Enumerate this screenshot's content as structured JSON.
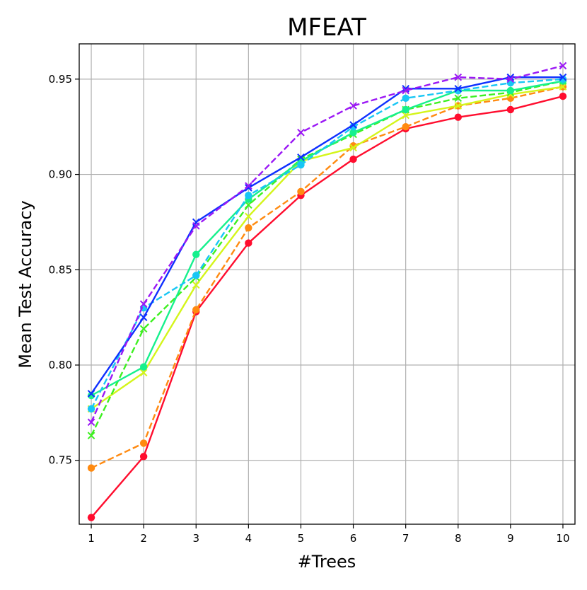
{
  "chart_data": {
    "type": "line",
    "title": "MFEAT",
    "xlabel": "#Trees",
    "ylabel": "Mean Test Accuracy",
    "x": [
      1,
      2,
      3,
      4,
      5,
      6,
      7,
      8,
      9,
      10
    ],
    "xlim": [
      0.77,
      10.23
    ],
    "ylim": [
      0.7165,
      0.9685
    ],
    "xticks": [
      "1",
      "2",
      "3",
      "4",
      "5",
      "6",
      "7",
      "8",
      "9",
      "10"
    ],
    "yticks": [
      0.75,
      0.8,
      0.85,
      0.9,
      0.95
    ],
    "ytick_labels": [
      "0.75",
      "0.80",
      "0.85",
      "0.90",
      "0.95"
    ],
    "grid": true,
    "series": [
      {
        "name": "red-solid-circle",
        "color": "#ff0d2e",
        "dash": "solid",
        "marker": "circle",
        "values": [
          0.72,
          0.752,
          0.828,
          0.864,
          0.889,
          0.908,
          0.924,
          0.93,
          0.934,
          0.941
        ]
      },
      {
        "name": "orange-dashed-circle",
        "color": "#ff8a10",
        "dash": "dashed",
        "marker": "circle",
        "values": [
          0.746,
          0.759,
          0.829,
          0.872,
          0.891,
          0.915,
          0.925,
          0.936,
          0.94,
          0.946
        ]
      },
      {
        "name": "yellow-solid-x",
        "color": "#d4f51a",
        "dash": "solid",
        "marker": "x",
        "values": [
          0.777,
          0.796,
          0.842,
          0.878,
          0.907,
          0.914,
          0.931,
          0.936,
          0.942,
          0.946
        ]
      },
      {
        "name": "green-dashed-x",
        "color": "#3df020",
        "dash": "dashed",
        "marker": "x",
        "values": [
          0.763,
          0.819,
          0.846,
          0.884,
          0.908,
          0.921,
          0.934,
          0.94,
          0.943,
          0.949
        ]
      },
      {
        "name": "teal-solid-circle",
        "color": "#16f08d",
        "dash": "solid",
        "marker": "circle",
        "values": [
          0.784,
          0.799,
          0.858,
          0.887,
          0.907,
          0.922,
          0.934,
          0.944,
          0.944,
          0.949
        ]
      },
      {
        "name": "cyan-dashed-circle",
        "color": "#18c6f5",
        "dash": "dashed",
        "marker": "circle",
        "values": [
          0.777,
          0.83,
          0.847,
          0.889,
          0.905,
          0.925,
          0.94,
          0.944,
          0.948,
          0.95
        ]
      },
      {
        "name": "blue-solid-x",
        "color": "#0f30ff",
        "dash": "solid",
        "marker": "x",
        "values": [
          0.785,
          0.825,
          0.875,
          0.893,
          0.909,
          0.926,
          0.945,
          0.945,
          0.951,
          0.951
        ]
      },
      {
        "name": "purple-dashed-x",
        "color": "#9b18f5",
        "dash": "dashed",
        "marker": "x",
        "values": [
          0.77,
          0.832,
          0.873,
          0.894,
          0.922,
          0.936,
          0.944,
          0.951,
          0.95,
          0.957
        ]
      }
    ]
  }
}
